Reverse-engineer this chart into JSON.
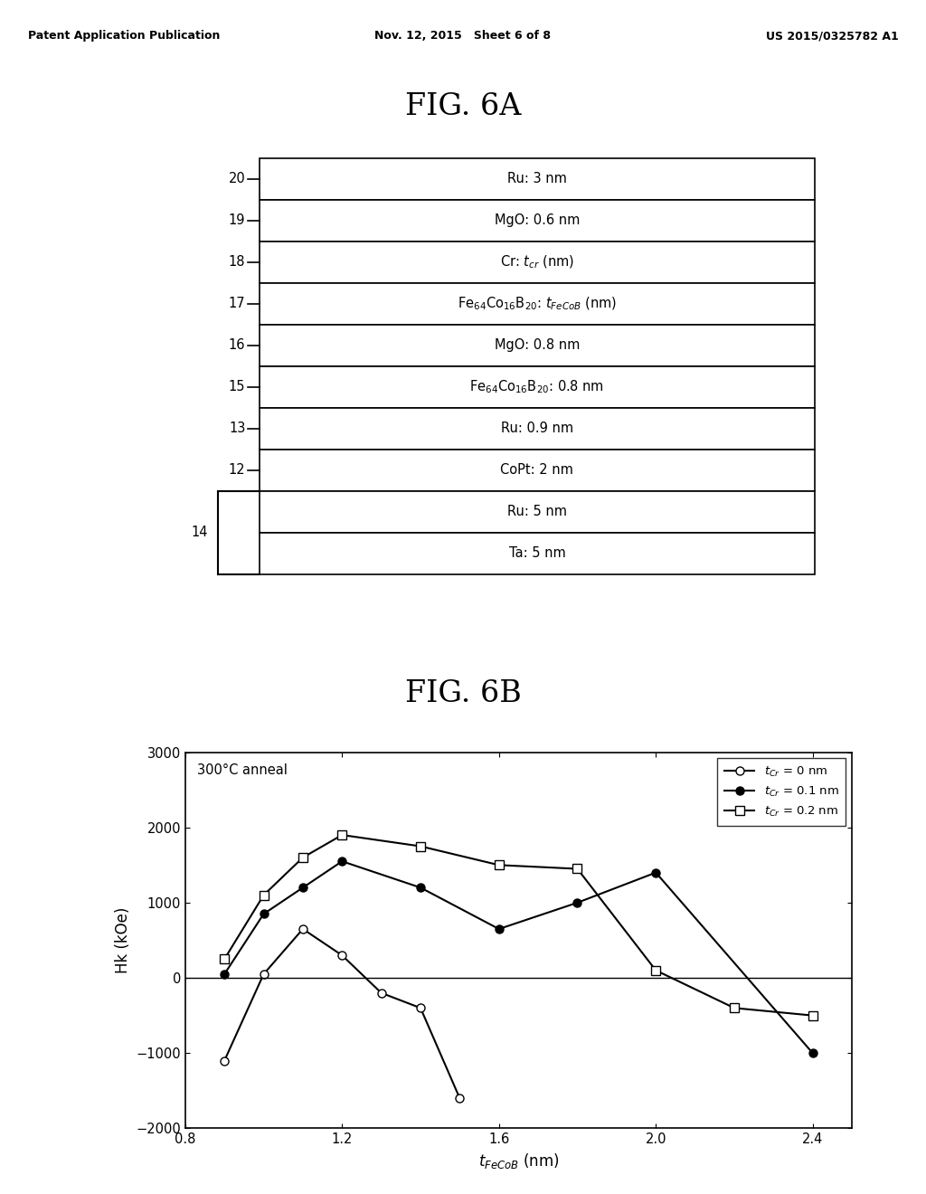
{
  "header_left": "Patent Application Publication",
  "header_center": "Nov. 12, 2015   Sheet 6 of 8",
  "header_right": "US 2015/0325782 A1",
  "fig6a_title": "FIG. 6A",
  "fig6b_title": "FIG. 6B",
  "layer_texts": [
    "Ru: 3 nm",
    "MgO: 0.6 nm",
    "Cr: $t_{cr}$ (nm)",
    "Fe$_{64}$Co$_{16}$B$_{20}$: $t_{FeCoB}$ (nm)",
    "MgO: 0.8 nm",
    "Fe$_{64}$Co$_{16}$B$_{20}$: 0.8 nm",
    "Ru: 0.9 nm",
    "CoPt: 2 nm",
    "Ru: 5 nm",
    "Ta: 5 nm"
  ],
  "layer_labels": [
    "20",
    "19",
    "18",
    "17",
    "16",
    "15",
    "13",
    "12",
    "",
    ""
  ],
  "series0_x": [
    0.9,
    1.0,
    1.1,
    1.2,
    1.3,
    1.4,
    1.5
  ],
  "series0_y": [
    -1100,
    50,
    650,
    300,
    -200,
    -400,
    -1600
  ],
  "series1_x": [
    0.9,
    1.0,
    1.1,
    1.2,
    1.4,
    1.6,
    1.8,
    2.0,
    2.4
  ],
  "series1_y": [
    50,
    850,
    1200,
    1550,
    1200,
    650,
    1000,
    1400,
    -1000
  ],
  "series2_x": [
    0.9,
    1.0,
    1.1,
    1.2,
    1.4,
    1.6,
    1.8,
    2.0,
    2.2,
    2.4
  ],
  "series2_y": [
    250,
    1100,
    1600,
    1900,
    1750,
    1500,
    1450,
    100,
    -400,
    -500
  ],
  "xlabel": "$t_{FeCoB}$ (nm)",
  "ylabel": "Hk (kOe)",
  "xlim": [
    0.8,
    2.5
  ],
  "ylim": [
    -2000,
    3000
  ],
  "yticks": [
    -2000,
    -1000,
    0,
    1000,
    2000,
    3000
  ],
  "xticks": [
    0.8,
    1.2,
    1.6,
    2.0,
    2.4
  ],
  "annot": "300°C anneal",
  "legend": [
    "$t_{Cr}$ = 0 nm",
    "$t_{Cr}$ = 0.1 nm",
    "$t_{Cr}$ = 0.2 nm"
  ]
}
